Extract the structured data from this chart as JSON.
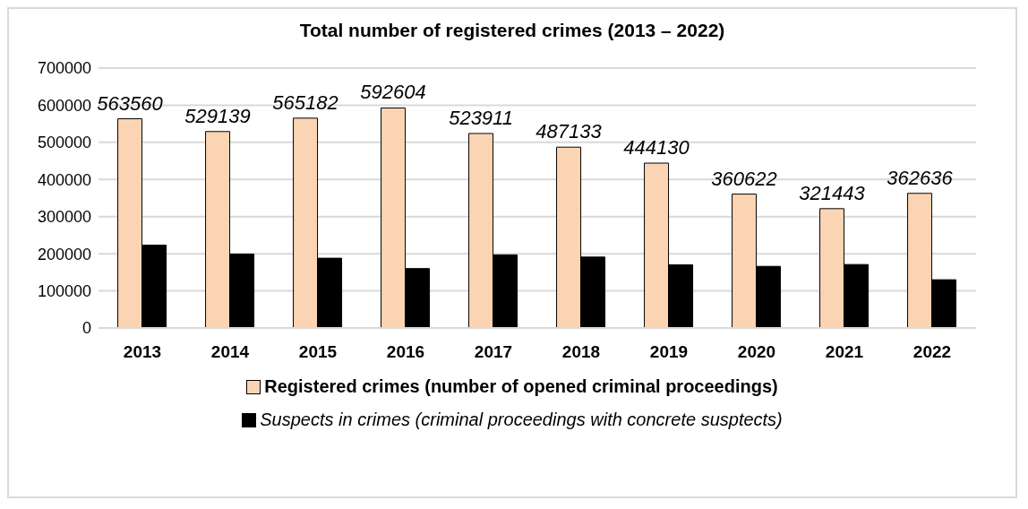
{
  "chart_data": {
    "type": "bar",
    "title": "Total number of registered crimes (2013 – 2022)",
    "categories": [
      "2013",
      "2014",
      "2015",
      "2016",
      "2017",
      "2018",
      "2019",
      "2020",
      "2021",
      "2022"
    ],
    "series": [
      {
        "name": "Registered crimes (number of opened criminal proceedings)",
        "color": "#fbd4b4",
        "values": [
          563560,
          529139,
          565182,
          592604,
          523911,
          487133,
          444130,
          360622,
          321443,
          362636
        ],
        "value_labels": [
          "563560",
          "529139",
          "565182",
          "592604",
          "523911",
          "487133",
          "444130",
          "360622",
          "321443",
          "362636"
        ]
      },
      {
        "name": "Suspects in crimes (criminal proceedings with concrete susptects)",
        "color": "#000000",
        "values": [
          223000,
          199000,
          188000,
          160000,
          197000,
          191000,
          170000,
          166000,
          171000,
          130000
        ]
      }
    ],
    "ylim": [
      0,
      700000
    ],
    "yticks": [
      0,
      100000,
      200000,
      300000,
      400000,
      500000,
      600000,
      700000
    ],
    "grid": "y",
    "legend": "bottom"
  }
}
